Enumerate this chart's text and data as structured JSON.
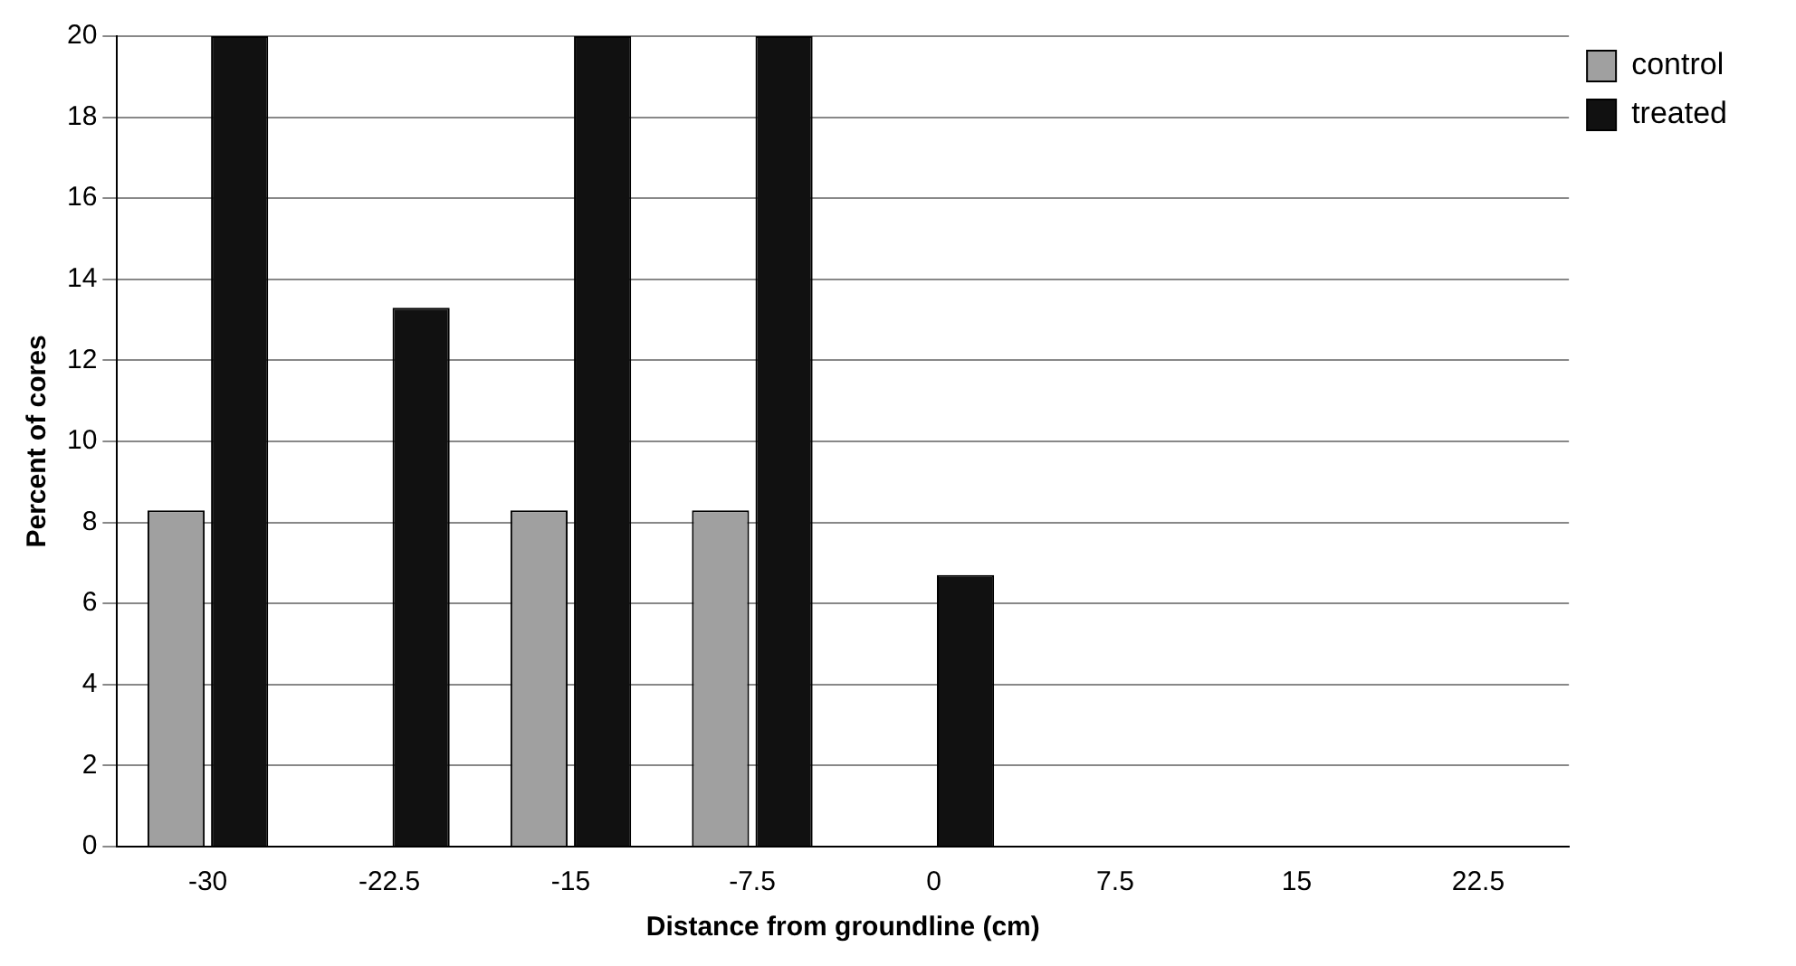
{
  "chart_data": {
    "type": "bar",
    "xlabel": "Distance from groundline (cm)",
    "ylabel": "Percent of cores",
    "categories": [
      "-30",
      "-22.5",
      "-15",
      "-7.5",
      "0",
      "7.5",
      "15",
      "22.5"
    ],
    "series": [
      {
        "name": "control",
        "color": "#a0a0a0",
        "values": [
          8.3,
          0,
          8.3,
          8.3,
          0,
          0,
          0,
          0
        ]
      },
      {
        "name": "treated",
        "color": "#111111",
        "values": [
          20,
          13.3,
          20,
          20,
          6.7,
          0,
          0,
          0
        ]
      }
    ],
    "ylim": [
      0,
      20
    ],
    "yticks": [
      0,
      2,
      4,
      6,
      8,
      10,
      12,
      14,
      16,
      18,
      20
    ],
    "grid": "y",
    "legend": "top right"
  }
}
